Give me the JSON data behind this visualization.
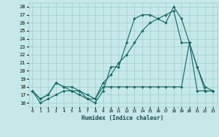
{
  "xlabel": "Humidex (Indice chaleur)",
  "bg_color": "#c6e8e8",
  "grid_color": "#99cccc",
  "line_color": "#1a6b6b",
  "xlim": [
    -0.5,
    23.5
  ],
  "ylim": [
    15.5,
    28.5
  ],
  "xticks": [
    0,
    1,
    2,
    3,
    4,
    5,
    6,
    7,
    8,
    9,
    10,
    11,
    12,
    13,
    14,
    15,
    16,
    17,
    18,
    19,
    20,
    21,
    22,
    23
  ],
  "yticks": [
    16,
    17,
    18,
    19,
    20,
    21,
    22,
    23,
    24,
    25,
    26,
    27,
    28
  ],
  "line1_x": [
    0,
    1,
    2,
    3,
    4,
    5,
    6,
    7,
    8,
    9,
    10,
    11,
    12,
    13,
    14,
    15,
    16,
    17,
    18,
    19,
    20,
    21,
    22,
    23
  ],
  "line1_y": [
    17.5,
    16.0,
    16.5,
    17.0,
    17.5,
    17.5,
    17.0,
    16.5,
    16.0,
    17.5,
    20.5,
    20.5,
    23.5,
    26.5,
    27.0,
    27.0,
    26.5,
    26.0,
    28.0,
    26.5,
    23.5,
    20.5,
    18.0,
    17.5
  ],
  "line2_x": [
    0,
    1,
    2,
    3,
    4,
    5,
    6,
    7,
    8,
    9,
    10,
    11,
    12,
    13,
    14,
    15,
    16,
    17,
    18,
    19,
    20,
    21,
    22,
    23
  ],
  "line2_y": [
    17.5,
    16.5,
    17.0,
    18.5,
    18.0,
    18.0,
    17.5,
    17.0,
    16.5,
    18.5,
    19.5,
    21.0,
    22.0,
    23.5,
    25.0,
    26.0,
    26.5,
    27.0,
    27.5,
    23.5,
    23.5,
    20.5,
    17.5,
    17.5
  ],
  "line3_x": [
    0,
    1,
    2,
    3,
    4,
    5,
    6,
    7,
    8,
    9,
    10,
    11,
    12,
    13,
    14,
    15,
    16,
    17,
    18,
    19,
    20,
    21,
    22,
    23
  ],
  "line3_y": [
    17.5,
    16.5,
    17.0,
    18.5,
    18.0,
    17.5,
    17.5,
    16.5,
    16.5,
    18.0,
    18.0,
    18.0,
    18.0,
    18.0,
    18.0,
    18.0,
    18.0,
    18.0,
    18.0,
    18.0,
    23.5,
    17.5,
    17.5,
    17.5
  ]
}
